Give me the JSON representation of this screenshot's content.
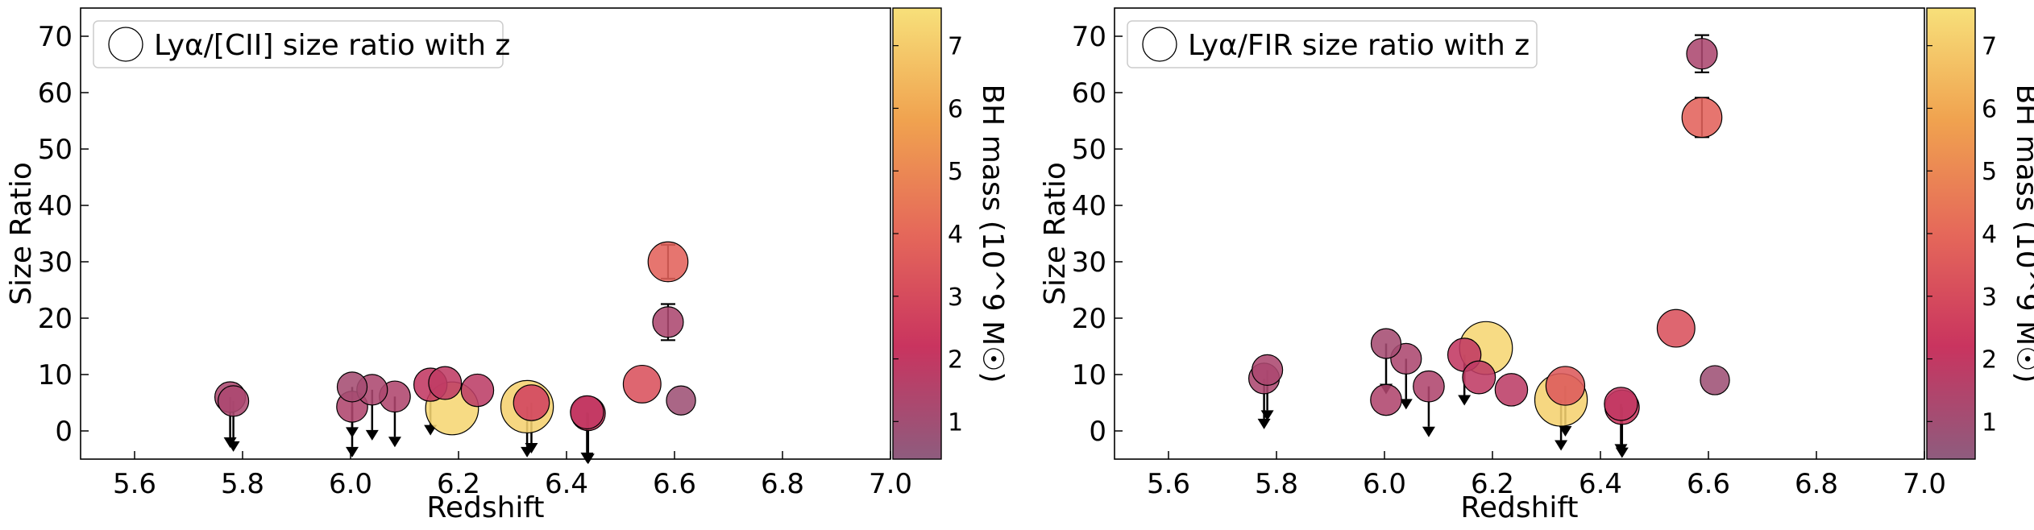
{
  "chart_data": [
    {
      "type": "scatter",
      "legend": "Lyα/[CII] size ratio with z",
      "legend_location": "top-left",
      "xlabel": "Redshift",
      "ylabel": "Size Ratio",
      "xlim": [
        5.5,
        7.0
      ],
      "ylim": [
        -5,
        75
      ],
      "xticks": [
        "5.6",
        "5.8",
        "6.0",
        "6.2",
        "6.4",
        "6.6",
        "6.8",
        "7.0"
      ],
      "yticks": [
        "0",
        "10",
        "20",
        "30",
        "40",
        "50",
        "60",
        "70"
      ],
      "colorbar": {
        "label": "BH mass (10^9 M☉)",
        "range": [
          0.4,
          7.6
        ],
        "ticks": [
          "1",
          "2",
          "3",
          "4",
          "5",
          "6",
          "7"
        ],
        "colors": [
          "#8e5c7e",
          "#c9345f",
          "#e5685a",
          "#f0a24f",
          "#f7e07a"
        ]
      },
      "points": [
        {
          "x": 5.777,
          "y": 6.0,
          "bh": 1.3,
          "upper_limit": true
        },
        {
          "x": 5.783,
          "y": 5.3,
          "bh": 1.3,
          "upper_limit": true
        },
        {
          "x": 6.003,
          "y": 7.8,
          "bh": 1.1,
          "upper_limit": true
        },
        {
          "x": 6.003,
          "y": 4.3,
          "bh": 1.4,
          "upper_limit": true
        },
        {
          "x": 6.04,
          "y": 7.3,
          "bh": 1.3,
          "upper_limit": true
        },
        {
          "x": 6.082,
          "y": 6.1,
          "bh": 1.4,
          "upper_limit": true
        },
        {
          "x": 6.148,
          "y": 8.2,
          "bh": 2.0,
          "upper_limit": true
        },
        {
          "x": 6.175,
          "y": 8.5,
          "bh": 1.9
        },
        {
          "x": 6.188,
          "y": 4.0,
          "bh": 7.3
        },
        {
          "x": 6.235,
          "y": 7.2,
          "bh": 1.8
        },
        {
          "x": 6.327,
          "y": 4.3,
          "bh": 7.2,
          "upper_limit": true
        },
        {
          "x": 6.335,
          "y": 5.0,
          "bh": 2.7,
          "upper_limit": true
        },
        {
          "x": 6.438,
          "y": 3.3,
          "bh": 2.0,
          "upper_limit": true
        },
        {
          "x": 6.44,
          "y": 3.1,
          "bh": 2.3,
          "upper_limit": true
        },
        {
          "x": 6.54,
          "y": 8.3,
          "bh": 3.2
        },
        {
          "x": 6.588,
          "y": 30.0,
          "bh": 3.8,
          "yerr": 3.0
        },
        {
          "x": 6.588,
          "y": 19.3,
          "bh": 1.3,
          "yerr": 3.2
        },
        {
          "x": 6.612,
          "y": 5.4,
          "bh": 0.9
        }
      ]
    },
    {
      "type": "scatter",
      "legend": "Lyα/FIR size ratio with z",
      "legend_location": "top-left",
      "xlabel": "Redshift",
      "ylabel": "Size Ratio",
      "xlim": [
        5.5,
        7.0
      ],
      "ylim": [
        -5,
        75
      ],
      "xticks": [
        "5.6",
        "5.8",
        "6.0",
        "6.2",
        "6.4",
        "6.6",
        "6.8",
        "7.0"
      ],
      "yticks": [
        "0",
        "10",
        "20",
        "30",
        "40",
        "50",
        "60",
        "70"
      ],
      "colorbar": {
        "label": "BH mass (10^9 M☉)",
        "range": [
          0.4,
          7.6
        ],
        "ticks": [
          "1",
          "2",
          "3",
          "4",
          "5",
          "6",
          "7"
        ],
        "colors": [
          "#8e5c7e",
          "#c9345f",
          "#e5685a",
          "#f0a24f",
          "#f7e07a"
        ]
      },
      "points": [
        {
          "x": 5.777,
          "y": 9.3,
          "bh": 1.3,
          "upper_limit": true
        },
        {
          "x": 5.783,
          "y": 10.8,
          "bh": 1.3,
          "upper_limit": true
        },
        {
          "x": 6.003,
          "y": 15.5,
          "bh": 1.1,
          "upper_limit": true
        },
        {
          "x": 6.003,
          "y": 5.5,
          "bh": 1.4
        },
        {
          "x": 6.04,
          "y": 12.8,
          "bh": 1.3,
          "upper_limit": true
        },
        {
          "x": 6.082,
          "y": 7.9,
          "bh": 1.4,
          "upper_limit": true
        },
        {
          "x": 6.148,
          "y": 13.5,
          "bh": 2.0,
          "upper_limit": true
        },
        {
          "x": 6.175,
          "y": 9.5,
          "bh": 1.9
        },
        {
          "x": 6.188,
          "y": 14.7,
          "bh": 7.3
        },
        {
          "x": 6.235,
          "y": 7.3,
          "bh": 1.8
        },
        {
          "x": 6.327,
          "y": 5.5,
          "bh": 7.2,
          "upper_limit": true
        },
        {
          "x": 6.335,
          "y": 8.0,
          "bh": 3.5,
          "upper_limit": true
        },
        {
          "x": 6.438,
          "y": 4.8,
          "bh": 2.0,
          "upper_limit": true
        },
        {
          "x": 6.44,
          "y": 4.2,
          "bh": 2.3,
          "upper_limit": true
        },
        {
          "x": 6.54,
          "y": 18.2,
          "bh": 3.2
        },
        {
          "x": 6.588,
          "y": 55.6,
          "bh": 3.8,
          "yerr": 3.5
        },
        {
          "x": 6.588,
          "y": 66.9,
          "bh": 1.3,
          "yerr": 3.3
        },
        {
          "x": 6.612,
          "y": 9.0,
          "bh": 0.9
        }
      ]
    }
  ]
}
